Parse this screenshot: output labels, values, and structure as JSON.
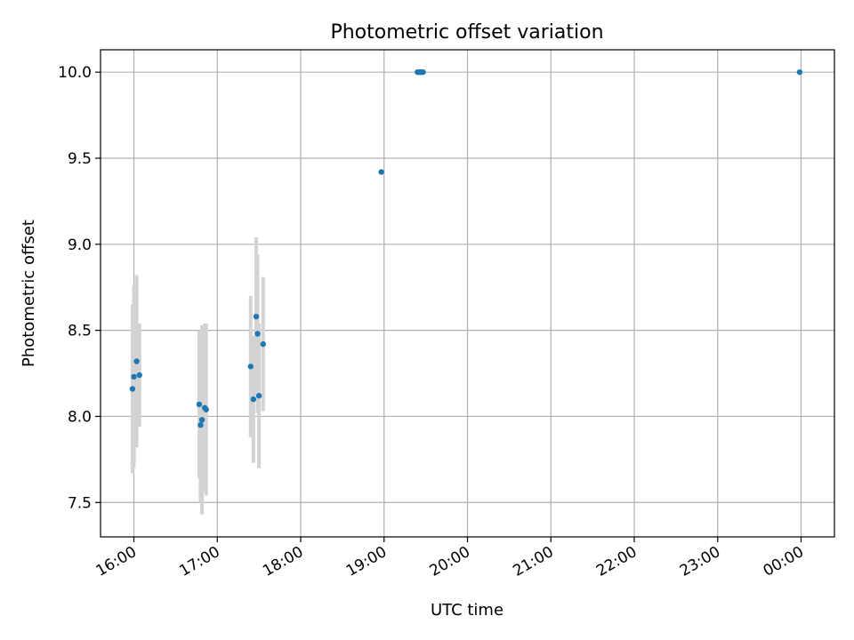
{
  "chart_data": {
    "type": "scatter",
    "title": "Photometric offset variation",
    "xlabel": "UTC time",
    "ylabel": "Photometric offset",
    "x_ticks": [
      "16:00",
      "17:00",
      "18:00",
      "19:00",
      "20:00",
      "21:00",
      "22:00",
      "23:00",
      "00:00"
    ],
    "y_ticks": [
      "7.5",
      "8.0",
      "8.5",
      "9.0",
      "9.5",
      "10.0"
    ],
    "xlim": [
      "15:36",
      "00:24"
    ],
    "ylim": [
      7.3,
      10.13
    ],
    "grid": true,
    "colors": {
      "points": "#1f77b4",
      "errorbars": "#d3d3d3",
      "grid": "#b0b0b0"
    },
    "points": [
      {
        "x": "15:59",
        "y": 8.16,
        "err": 0.49
      },
      {
        "x": "16:00",
        "y": 8.23,
        "err": 0.53
      },
      {
        "x": "16:02",
        "y": 8.32,
        "err": 0.5
      },
      {
        "x": "16:04",
        "y": 8.24,
        "err": 0.3
      },
      {
        "x": "16:47",
        "y": 8.07,
        "err": 0.43
      },
      {
        "x": "16:48",
        "y": 7.95,
        "err": 0.45
      },
      {
        "x": "16:49",
        "y": 7.98,
        "err": 0.55
      },
      {
        "x": "16:51",
        "y": 8.05,
        "err": 0.49
      },
      {
        "x": "16:52",
        "y": 8.04,
        "err": 0.5
      },
      {
        "x": "17:24",
        "y": 8.29,
        "err": 0.41
      },
      {
        "x": "17:26",
        "y": 8.1,
        "err": 0.37
      },
      {
        "x": "17:28",
        "y": 8.58,
        "err": 0.46
      },
      {
        "x": "17:29",
        "y": 8.48,
        "err": 0.46
      },
      {
        "x": "17:30",
        "y": 8.12,
        "err": 0.42
      },
      {
        "x": "17:33",
        "y": 8.42,
        "err": 0.39
      },
      {
        "x": "18:58",
        "y": 9.42,
        "err": 0
      },
      {
        "x": "19:24",
        "y": 10.0,
        "err": 0
      },
      {
        "x": "19:25",
        "y": 10.0,
        "err": 0
      },
      {
        "x": "19:26",
        "y": 10.0,
        "err": 0
      },
      {
        "x": "19:27",
        "y": 10.0,
        "err": 0
      },
      {
        "x": "19:28",
        "y": 10.0,
        "err": 0
      },
      {
        "x": "23:59",
        "y": 10.0,
        "err": 0
      }
    ]
  }
}
